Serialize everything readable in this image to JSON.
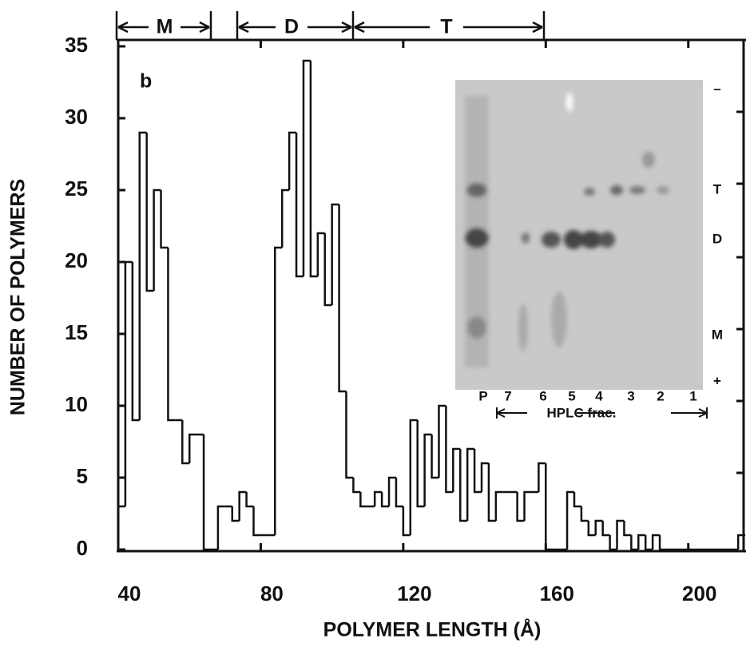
{
  "chart_data": {
    "type": "histogram",
    "panel_label": "b",
    "xlabel": "POLYMER LENGTH (Å)",
    "ylabel": "NUMBER OF POLYMERS",
    "bins": [
      40,
      42,
      44,
      46,
      48,
      50,
      52,
      54,
      56,
      58,
      60,
      62,
      64,
      66,
      68,
      70,
      72,
      74,
      76,
      78,
      80,
      82,
      84,
      86,
      88,
      90,
      92,
      94,
      96,
      98,
      100,
      102,
      104,
      106,
      108,
      110,
      112,
      114,
      116,
      118,
      120,
      122,
      124,
      126,
      128,
      130,
      132,
      134,
      136,
      138,
      140,
      142,
      144,
      146,
      148,
      150,
      152,
      154,
      156,
      158,
      160,
      162,
      164,
      166,
      168,
      170,
      172,
      174,
      176,
      178,
      180,
      182,
      184,
      186,
      188,
      190,
      192,
      194,
      196,
      198,
      200,
      202,
      204,
      206,
      208,
      210,
      212,
      214,
      216
    ],
    "counts": [
      3,
      20,
      9,
      29,
      18,
      25,
      21,
      9,
      9,
      6,
      8,
      8,
      0,
      0,
      3,
      3,
      2,
      4,
      3,
      1,
      1,
      1,
      21,
      25,
      29,
      19,
      34,
      19,
      22,
      17,
      24,
      11,
      5,
      4,
      3,
      3,
      4,
      3,
      5,
      3,
      1,
      9,
      3,
      8,
      5,
      10,
      4,
      7,
      2,
      7,
      4,
      6,
      2,
      4,
      4,
      4,
      2,
      4,
      4,
      6,
      0,
      0,
      0,
      4,
      3,
      2,
      1,
      2,
      1,
      0,
      2,
      1,
      0,
      1,
      0,
      1,
      0,
      0,
      0,
      0,
      0,
      0,
      0,
      0,
      0,
      0,
      0,
      1
    ],
    "color": "#111111",
    "xlim": [
      40,
      216.2
    ],
    "ylim": [
      0,
      35
    ],
    "xticks": [
      40,
      80,
      120,
      160,
      200
    ],
    "yticks": [
      0,
      5,
      10,
      15,
      20,
      25,
      30,
      35
    ],
    "annotations": [
      "M",
      "D",
      "T"
    ],
    "inset": {
      "lanes": [
        "P",
        "7",
        "6",
        "5",
        "4",
        "3",
        "2",
        "1"
      ],
      "caption": "HPLC frac.",
      "markers": [
        "–",
        "T",
        "D",
        "M",
        "+"
      ]
    }
  }
}
